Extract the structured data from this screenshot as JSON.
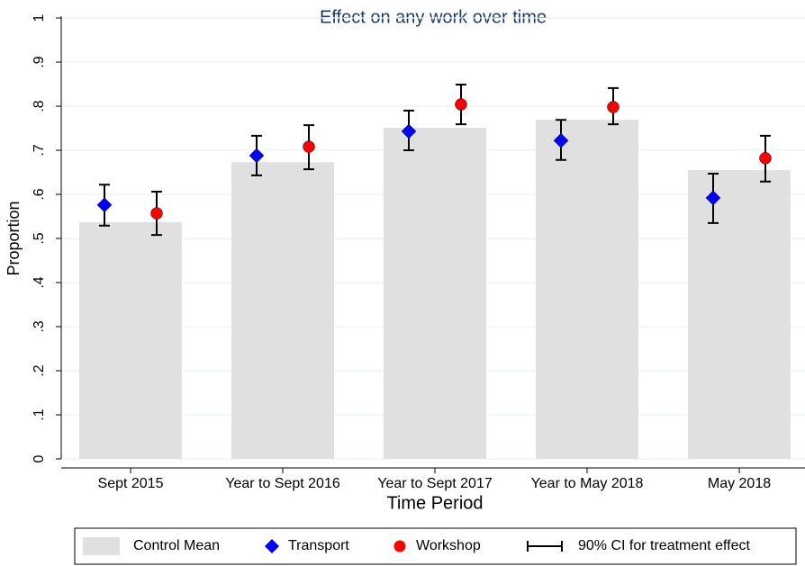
{
  "chart_data": {
    "type": "bar",
    "title": "Effect on any work over time",
    "xlabel": "Time Period",
    "ylabel": "Proportion",
    "categories": [
      "Sept 2015",
      "Year to Sept 2016",
      "Year to Sept 2017",
      "Year to May 2018",
      "May 2018"
    ],
    "series": [
      {
        "name": "Control Mean",
        "color": "#e0e0e0",
        "values": [
          0.537,
          0.673,
          0.751,
          0.769,
          0.655
        ]
      },
      {
        "name": "Transport",
        "color": "#0000ff",
        "marker": "diamond",
        "values": [
          0.576,
          0.688,
          0.743,
          0.722,
          0.592
        ],
        "ci_low": [
          0.529,
          0.643,
          0.7,
          0.678,
          0.535
        ],
        "ci_high": [
          0.622,
          0.733,
          0.79,
          0.769,
          0.647
        ]
      },
      {
        "name": "Workshop",
        "color": "#ff0000",
        "marker": "circle",
        "values": [
          0.557,
          0.708,
          0.804,
          0.798,
          0.682
        ],
        "ci_low": [
          0.508,
          0.657,
          0.759,
          0.759,
          0.629
        ],
        "ci_high": [
          0.606,
          0.757,
          0.849,
          0.841,
          0.733
        ]
      }
    ],
    "ci_label": "90% CI for treatment effect",
    "ylim": [
      0,
      1
    ],
    "yticks": [
      0,
      {
        "value": 0.1,
        "label": ".1"
      },
      {
        "value": 0.2,
        "label": ".2"
      },
      {
        "value": 0.3,
        "label": ".3"
      },
      {
        "value": 0.4,
        "label": ".4"
      },
      {
        "value": 0.5,
        "label": ".5"
      },
      {
        "value": 0.6,
        "label": ".6"
      },
      {
        "value": 0.7,
        "label": ".7"
      },
      {
        "value": 0.8,
        "label": ".8"
      },
      {
        "value": 0.9,
        "label": ".9"
      },
      1
    ],
    "grid": true
  }
}
